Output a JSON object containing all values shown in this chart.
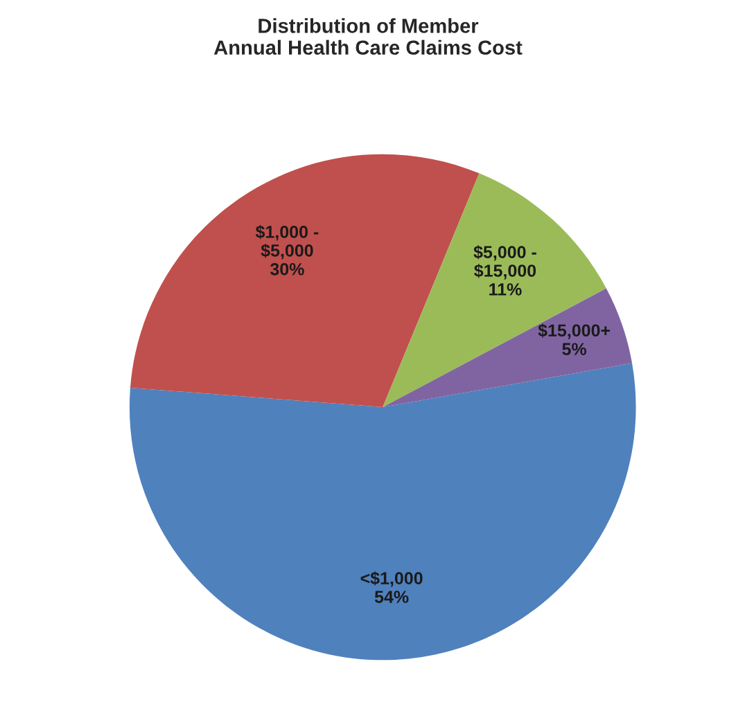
{
  "chart_data": {
    "type": "pie",
    "title": "Distribution of Member\nAnnual Health Care Claims Cost",
    "categories": [
      "<$1,000",
      "$1,000 -\n$5,000",
      "$5,000 -\n$15,000",
      "$15,000+"
    ],
    "values": [
      54,
      30,
      11,
      5
    ],
    "value_labels": [
      "54%",
      "30%",
      "11%",
      "5%"
    ],
    "colors": [
      "#4f81bd",
      "#c0504d",
      "#9bbb59",
      "#8064a2"
    ],
    "legend": false
  }
}
